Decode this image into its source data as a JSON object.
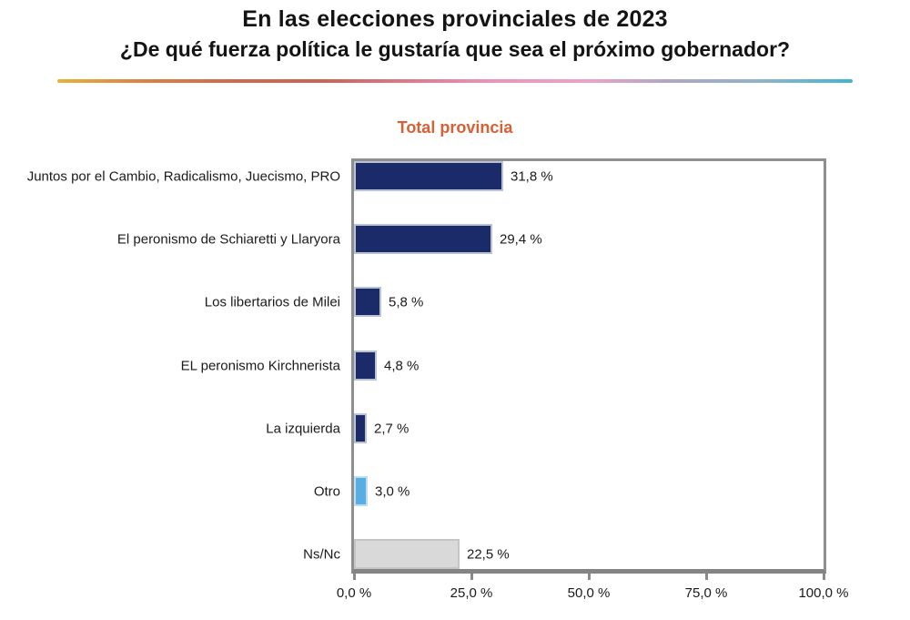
{
  "page": {
    "title_line1": "En las elecciones provinciales de 2023",
    "title_line2": "¿De qué fuerza política le gustaría que sea el próximo gobernador?",
    "divider_gradient_stops": [
      "#E8B23C",
      "#DB8045",
      "#CF6950",
      "#CC6355",
      "#DE7A8C",
      "#EC96BC",
      "#ECA2C8",
      "#ABA7C6",
      "#8FB3CB",
      "#41B5D2"
    ],
    "panel_label": "Total provincia",
    "panel_label_color": "#D95F35"
  },
  "chart_data": {
    "type": "bar",
    "orientation": "horizontal",
    "title": "En las elecciones provinciales de 2023 — ¿De qué fuerza política le gustaría que sea el próximo gobernador?",
    "panel": "Total provincia",
    "categories": [
      "Juntos por el Cambio, Radicalismo, Juecismo, PRO",
      "El peronismo de Schiaretti y Llaryora",
      "Los libertarios de Milei",
      "EL peronismo Kirchnerista",
      "La izquierda",
      "Otro",
      "Ns/Nc"
    ],
    "values": [
      31.8,
      29.4,
      5.8,
      4.8,
      2.7,
      3.0,
      22.5
    ],
    "value_labels": [
      "31,8 %",
      "29,4 %",
      "5,8 %",
      "4,8 %",
      "2,7 %",
      "3,0 %",
      "22,5 %"
    ],
    "bar_fills": [
      "#1B2A69",
      "#1B2A69",
      "#1B2A69",
      "#1B2A69",
      "#1B2A69",
      "#58ADE3",
      "#D9D9D9"
    ],
    "bar_borders": [
      "#B9C2D4",
      "#B9C2D4",
      "#B9C2D4",
      "#B9C2D4",
      "#B9C2D4",
      "#BFDDF0",
      "#C6C6C6"
    ],
    "xlabel": "",
    "ylabel": "",
    "xlim": [
      0,
      100
    ],
    "x_ticks": [
      0,
      25,
      50,
      75,
      100
    ],
    "x_tick_labels": [
      "0,0 %",
      "25,0 %",
      "50,0 %",
      "75,0 %",
      "100,0 %"
    ],
    "grid": false,
    "legend": "none",
    "axis_color": "#8a8a8a"
  }
}
